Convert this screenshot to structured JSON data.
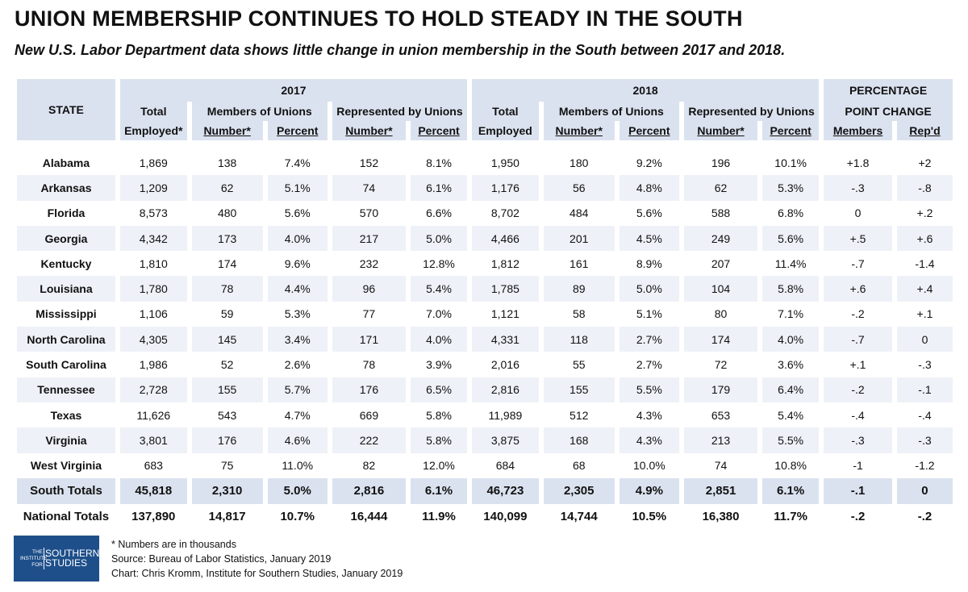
{
  "title": "UNION MEMBERSHIP CONTINUES TO HOLD STEADY IN THE SOUTH",
  "subtitle": "New U.S. Labor Department data shows little change in union membership in the South between 2017 and 2018.",
  "header": {
    "state": "STATE",
    "year1": "2017",
    "year2": "2018",
    "pp_line1": "PERCENTAGE",
    "pp_line2": "POINT CHANGE",
    "total_line1": "Total",
    "total_line2_2017": "Employed*",
    "total_line2_2018": "Employed",
    "members_of_unions": "Members of Unions",
    "represented_by_unions": "Represented by Unions",
    "number": "Number*",
    "percent": "Percent",
    "members": "Members",
    "repd": "Rep'd"
  },
  "chart_data": {
    "type": "table",
    "columns": [
      "State",
      "2017 Total Employed*",
      "2017 Members Number*",
      "2017 Members Percent",
      "2017 Represented Number*",
      "2017 Represented Percent",
      "2018 Total Employed",
      "2018 Members Number*",
      "2018 Members Percent",
      "2018 Represented Number*",
      "2018 Represented Percent",
      "Change Members",
      "Change Rep'd"
    ],
    "rows": [
      [
        "Alabama",
        "1,869",
        "138",
        "7.4%",
        "152",
        "8.1%",
        "1,950",
        "180",
        "9.2%",
        "196",
        "10.1%",
        "+1.8",
        "+2"
      ],
      [
        "Arkansas",
        "1,209",
        "62",
        "5.1%",
        "74",
        "6.1%",
        "1,176",
        "56",
        "4.8%",
        "62",
        "5.3%",
        "-.3",
        "-.8"
      ],
      [
        "Florida",
        "8,573",
        "480",
        "5.6%",
        "570",
        "6.6%",
        "8,702",
        "484",
        "5.6%",
        "588",
        "6.8%",
        "0",
        "+.2"
      ],
      [
        "Georgia",
        "4,342",
        "173",
        "4.0%",
        "217",
        "5.0%",
        "4,466",
        "201",
        "4.5%",
        "249",
        "5.6%",
        "+.5",
        "+.6"
      ],
      [
        "Kentucky",
        "1,810",
        "174",
        "9.6%",
        "232",
        "12.8%",
        "1,812",
        "161",
        "8.9%",
        "207",
        "11.4%",
        "-.7",
        "-1.4"
      ],
      [
        "Louisiana",
        "1,780",
        "78",
        "4.4%",
        "96",
        "5.4%",
        "1,785",
        "89",
        "5.0%",
        "104",
        "5.8%",
        "+.6",
        "+.4"
      ],
      [
        "Mississippi",
        "1,106",
        "59",
        "5.3%",
        "77",
        "7.0%",
        "1,121",
        "58",
        "5.1%",
        "80",
        "7.1%",
        "-.2",
        "+.1"
      ],
      [
        "North Carolina",
        "4,305",
        "145",
        "3.4%",
        "171",
        "4.0%",
        "4,331",
        "118",
        "2.7%",
        "174",
        "4.0%",
        "-.7",
        "0"
      ],
      [
        "South Carolina",
        "1,986",
        "52",
        "2.6%",
        "78",
        "3.9%",
        "2,016",
        "55",
        "2.7%",
        "72",
        "3.6%",
        "+.1",
        "-.3"
      ],
      [
        "Tennessee",
        "2,728",
        "155",
        "5.7%",
        "176",
        "6.5%",
        "2,816",
        "155",
        "5.5%",
        "179",
        "6.4%",
        "-.2",
        "-.1"
      ],
      [
        "Texas",
        "11,626",
        "543",
        "4.7%",
        "669",
        "5.8%",
        "11,989",
        "512",
        "4.3%",
        "653",
        "5.4%",
        "-.4",
        "-.4"
      ],
      [
        "Virginia",
        "3,801",
        "176",
        "4.6%",
        "222",
        "5.8%",
        "3,875",
        "168",
        "4.3%",
        "213",
        "5.5%",
        "-.3",
        "-.3"
      ],
      [
        "West Virginia",
        "683",
        "75",
        "11.0%",
        "82",
        "12.0%",
        "684",
        "68",
        "10.0%",
        "74",
        "10.8%",
        "-1",
        "-1.2"
      ]
    ],
    "totals": [
      [
        "South Totals",
        "45,818",
        "2,310",
        "5.0%",
        "2,816",
        "6.1%",
        "46,723",
        "2,305",
        "4.9%",
        "2,851",
        "6.1%",
        "-.1",
        "0"
      ],
      [
        "National Totals",
        "137,890",
        "14,817",
        "10.7%",
        "16,444",
        "11.9%",
        "140,099",
        "14,744",
        "10.5%",
        "16,380",
        "11.7%",
        "-.2",
        "-.2"
      ]
    ]
  },
  "logo": {
    "small_line1": "THE",
    "small_line2": "INSTITUTE",
    "small_line3": "FOR",
    "big_line1": "SOUTHERN",
    "big_line2": "STUDIES",
    "color": "#1e4f8a"
  },
  "notes": {
    "line1": "* Numbers are in thousands",
    "line2": "Source: Bureau of Labor Statistics, January 2019",
    "line3": "Chart: Chris Kromm, Institute for Southern Studies, January 2019"
  },
  "colors": {
    "header_bg": "#dbe2ef",
    "row_shade": "#eef1f7"
  }
}
